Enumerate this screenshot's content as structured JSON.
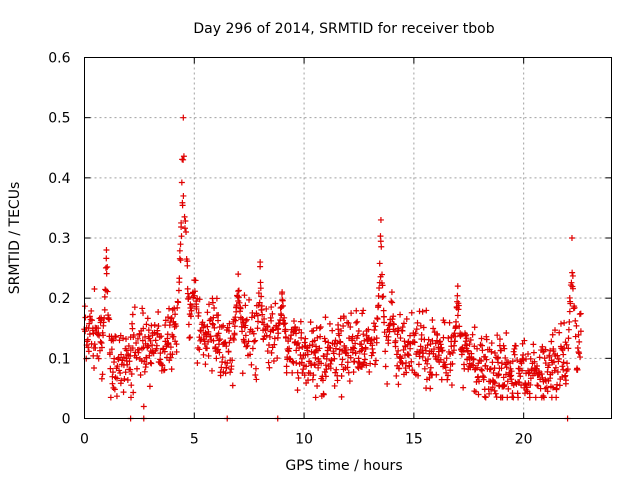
{
  "chart_data": {
    "type": "scatter",
    "title": "Day 296 of 2014, SRMTID for receiver tbob",
    "xlabel": "GPS time / hours",
    "ylabel": "SRMTID / TECUs",
    "xlim": [
      0,
      24
    ],
    "ylim": [
      0,
      0.6
    ],
    "xticks": [
      0,
      5,
      10,
      15,
      20
    ],
    "yticks": [
      0,
      0.1,
      0.2,
      0.3,
      0.4,
      0.5,
      0.6
    ],
    "xtick_labels": [
      "0",
      "5",
      "10",
      "15",
      "20"
    ],
    "ytick_labels": [
      "0",
      "0.1",
      "0.2",
      "0.3",
      "0.4",
      "0.5",
      "0.6"
    ],
    "marker": "+",
    "color": "#e00000",
    "grid": true,
    "profile": {
      "x": [
        0,
        0.3,
        0.6,
        0.9,
        1.2,
        1.6,
        2.0,
        2.5,
        3.0,
        3.5,
        4.0,
        4.5,
        5.0,
        5.5,
        6.0,
        6.5,
        7.0,
        7.5,
        8.0,
        8.5,
        9.0,
        9.5,
        10.0,
        11.0,
        12.0,
        13.0,
        13.5,
        14.0,
        15.0,
        16.0,
        17.0,
        18.0,
        19.0,
        20.0,
        21.0,
        22.0,
        22.6
      ],
      "y": [
        0.15,
        0.16,
        0.13,
        0.14,
        0.1,
        0.09,
        0.1,
        0.12,
        0.12,
        0.13,
        0.15,
        0.17,
        0.17,
        0.14,
        0.13,
        0.11,
        0.14,
        0.13,
        0.13,
        0.14,
        0.13,
        0.12,
        0.1,
        0.1,
        0.11,
        0.12,
        0.13,
        0.11,
        0.12,
        0.11,
        0.1,
        0.08,
        0.08,
        0.07,
        0.08,
        0.1,
        0.13
      ],
      "spread": 0.035
    },
    "spikes": [
      {
        "x": 1.0,
        "peak": 0.28,
        "width": 0.15
      },
      {
        "x": 4.5,
        "peak": 0.5,
        "width": 0.25
      },
      {
        "x": 5.0,
        "peak": 0.23,
        "width": 0.15
      },
      {
        "x": 7.0,
        "peak": 0.24,
        "width": 0.2
      },
      {
        "x": 8.0,
        "peak": 0.26,
        "width": 0.15
      },
      {
        "x": 9.0,
        "peak": 0.21,
        "width": 0.2
      },
      {
        "x": 13.5,
        "peak": 0.33,
        "width": 0.2
      },
      {
        "x": 14.0,
        "peak": 0.21,
        "width": 0.2
      },
      {
        "x": 17.0,
        "peak": 0.22,
        "width": 0.2
      },
      {
        "x": 22.2,
        "peak": 0.3,
        "width": 0.2
      }
    ],
    "zero_points": [
      2.1,
      2.7,
      6.5,
      8.8,
      22.0
    ],
    "outliers": [
      [
        2.7,
        0.02
      ]
    ],
    "sample_step_hours": 0.025,
    "data_end": 22.6
  }
}
